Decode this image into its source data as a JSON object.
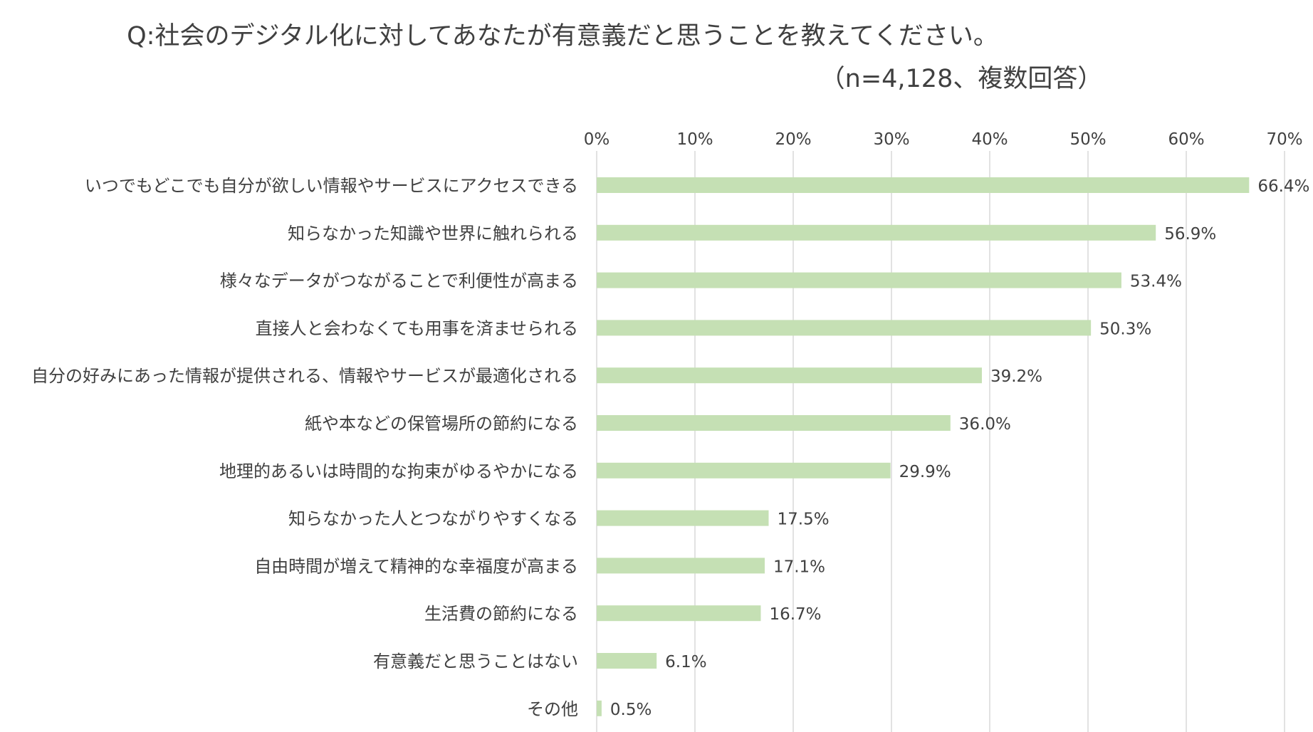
{
  "chart_data": {
    "type": "bar",
    "orientation": "horizontal",
    "title": "Q:社会のデジタル化に対してあなたが有意義だと思うことを教えてください。",
    "subtitle": "（n=4,128、複数回答）",
    "categories": [
      "いつでもどこでも自分が欲しい情報やサービスにアクセスできる",
      "知らなかった知識や世界に触れられる",
      "様々なデータがつながることで利便性が高まる",
      "直接人と会わなくても用事を済ませられる",
      "自分の好みにあった情報が提供される、情報やサービスが最適化される",
      "紙や本などの保管場所の節約になる",
      "地理的あるいは時間的な拘束がゆるやかになる",
      "知らなかった人とつながりやすくなる",
      "自由時間が増えて精神的な幸福度が高まる",
      "生活費の節約になる",
      "有意義だと思うことはない",
      "その他"
    ],
    "values": [
      66.4,
      56.9,
      53.4,
      50.3,
      39.2,
      36.0,
      29.9,
      17.5,
      17.1,
      16.7,
      6.1,
      0.5
    ],
    "value_labels": [
      "66.4%",
      "56.9%",
      "53.4%",
      "50.3%",
      "39.2%",
      "36.0%",
      "29.9%",
      "17.5%",
      "17.1%",
      "16.7%",
      "6.1%",
      "0.5%"
    ],
    "xlim": [
      0,
      70
    ],
    "xticks": [
      0,
      10,
      20,
      30,
      40,
      50,
      60,
      70
    ],
    "xtick_labels": [
      "0%",
      "10%",
      "20%",
      "30%",
      "40%",
      "50%",
      "60%",
      "70%"
    ],
    "axis_position": "top",
    "grid": true,
    "legend": "none",
    "bar_color": "#c5e0b4",
    "grid_color": "#d9d9d9",
    "text_color": "#404040"
  }
}
